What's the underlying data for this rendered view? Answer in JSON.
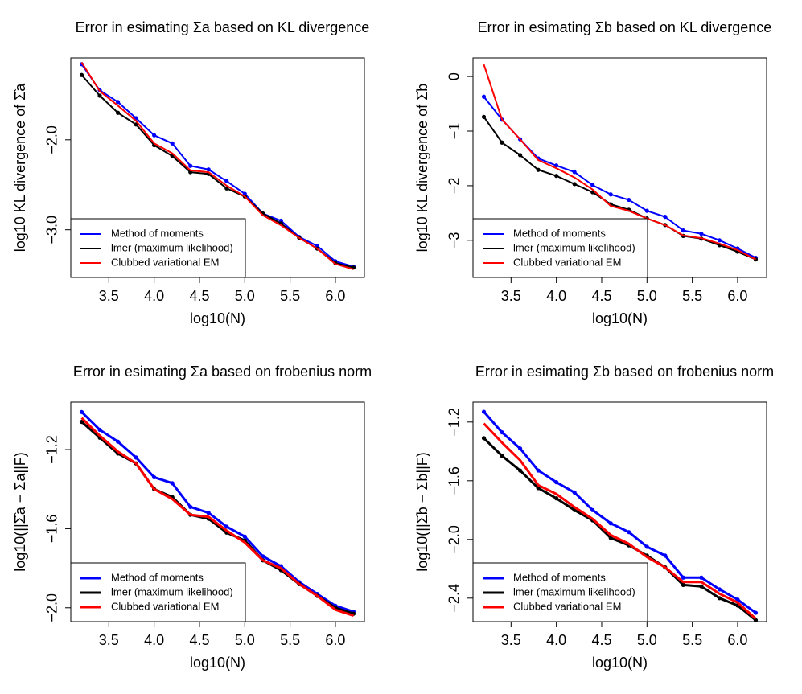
{
  "chart_data": [
    {
      "type": "line",
      "title": "Error in esimating Σa based on KL divergence",
      "xlabel": "log10(N)",
      "ylabel": "log10 KL divergence of Σ̂a",
      "x": [
        3.2,
        3.4,
        3.6,
        3.8,
        4.0,
        4.2,
        4.4,
        4.6,
        4.8,
        5.0,
        5.2,
        5.4,
        5.6,
        5.8,
        6.0,
        6.2
      ],
      "xlim": [
        3.08,
        6.32
      ],
      "xticks": [
        3.5,
        {
          "value": 4,
          "label": "4.0"
        },
        4.5,
        {
          "value": 5,
          "label": "5.0"
        },
        5.5,
        {
          "value": 6,
          "label": "6.0"
        }
      ],
      "ylim": [
        -3.53,
        -1.09
      ],
      "yticks": [
        {
          "value": -2,
          "label": "−2.0"
        },
        {
          "value": -3,
          "label": "−3.0"
        }
      ],
      "legend": "bottomleft",
      "line_width": 2,
      "series": [
        {
          "name": "Method of moments",
          "color": "#0000ff",
          "marker": true,
          "values": [
            -1.16,
            -1.45,
            -1.58,
            -1.76,
            -1.95,
            -2.04,
            -2.29,
            -2.33,
            -2.46,
            -2.6,
            -2.82,
            -2.9,
            -3.08,
            -3.18,
            -3.35,
            -3.41
          ]
        },
        {
          "name": "lmer (maximum likelihood)",
          "color": "#000000",
          "marker": true,
          "values": [
            -1.28,
            -1.51,
            -1.7,
            -1.83,
            -2.06,
            -2.18,
            -2.36,
            -2.38,
            -2.54,
            -2.63,
            -2.82,
            -2.93,
            -3.09,
            -3.21,
            -3.37,
            -3.42
          ]
        },
        {
          "name": "Clubbed variational EM",
          "color": "#ff0000",
          "marker": false,
          "values": [
            -1.14,
            -1.46,
            -1.62,
            -1.79,
            -2.04,
            -2.15,
            -2.34,
            -2.36,
            -2.51,
            -2.63,
            -2.84,
            -2.95,
            -3.09,
            -3.21,
            -3.38,
            -3.44
          ]
        }
      ]
    },
    {
      "type": "line",
      "title": "Error in esimating Σb based on KL divergence",
      "xlabel": "log10(N)",
      "ylabel": "log10 KL divergence of Σ̂b",
      "x": [
        3.2,
        3.4,
        3.6,
        3.8,
        4.0,
        4.2,
        4.4,
        4.6,
        4.8,
        5.0,
        5.2,
        5.4,
        5.6,
        5.8,
        6.0,
        6.2
      ],
      "xlim": [
        3.08,
        6.32
      ],
      "xticks": [
        3.5,
        {
          "value": 4,
          "label": "4.0"
        },
        4.5,
        {
          "value": 5,
          "label": "5.0"
        },
        5.5,
        {
          "value": 6,
          "label": "6.0"
        }
      ],
      "ylim": [
        -3.68,
        0.34
      ],
      "yticks": [
        0,
        {
          "value": -1,
          "label": "−1"
        },
        {
          "value": -2,
          "label": "−2"
        },
        {
          "value": -3,
          "label": "−3"
        }
      ],
      "legend": "bottomleft",
      "line_width": 2,
      "series": [
        {
          "name": "Method of moments",
          "color": "#0000ff",
          "marker": true,
          "values": [
            -0.37,
            -0.79,
            -1.15,
            -1.5,
            -1.63,
            -1.75,
            -1.99,
            -2.16,
            -2.26,
            -2.46,
            -2.57,
            -2.82,
            -2.88,
            -3.0,
            -3.15,
            -3.32
          ]
        },
        {
          "name": "lmer (maximum likelihood)",
          "color": "#000000",
          "marker": true,
          "values": [
            -0.74,
            -1.21,
            -1.44,
            -1.71,
            -1.82,
            -1.97,
            -2.12,
            -2.34,
            -2.44,
            -2.6,
            -2.72,
            -2.92,
            -2.97,
            -3.09,
            -3.21,
            -3.35
          ]
        },
        {
          "name": "Clubbed variational EM",
          "color": "#ff0000",
          "marker": false,
          "values": [
            0.22,
            -0.79,
            -1.15,
            -1.53,
            -1.68,
            -1.85,
            -2.07,
            -2.37,
            -2.46,
            -2.6,
            -2.72,
            -2.91,
            -2.96,
            -3.06,
            -3.18,
            -3.35
          ]
        }
      ]
    },
    {
      "type": "line",
      "title": "Error in esimating Σa based on frobenius norm",
      "xlabel": "log10(N)",
      "ylabel": "log10(||Σ̂a − Σa||F)",
      "x": [
        3.2,
        3.4,
        3.6,
        3.8,
        4.0,
        4.2,
        4.4,
        4.6,
        4.8,
        5.0,
        5.2,
        5.4,
        5.6,
        5.8,
        6.0,
        6.2
      ],
      "xlim": [
        3.08,
        6.32
      ],
      "xticks": [
        3.5,
        {
          "value": 4,
          "label": "4.0"
        },
        4.5,
        {
          "value": 5,
          "label": "5.0"
        },
        5.5,
        {
          "value": 6,
          "label": "6.0"
        }
      ],
      "ylim": [
        -2.07,
        -0.96
      ],
      "yticks": [
        {
          "value": -1.2,
          "label": "−1.2"
        },
        {
          "value": -1.6,
          "label": "−1.6"
        },
        {
          "value": -2,
          "label": "−2.0"
        }
      ],
      "legend": "bottomleft",
      "line_width": 3,
      "series": [
        {
          "name": "Method of moments",
          "color": "#0000ff",
          "marker": true,
          "values": [
            -1.01,
            -1.1,
            -1.16,
            -1.24,
            -1.34,
            -1.37,
            -1.49,
            -1.52,
            -1.59,
            -1.64,
            -1.74,
            -1.79,
            -1.87,
            -1.93,
            -1.99,
            -2.02
          ]
        },
        {
          "name": "lmer (maximum likelihood)",
          "color": "#000000",
          "marker": true,
          "values": [
            -1.06,
            -1.14,
            -1.22,
            -1.27,
            -1.4,
            -1.44,
            -1.53,
            -1.55,
            -1.62,
            -1.66,
            -1.76,
            -1.81,
            -1.88,
            -1.94,
            -2.0,
            -2.03
          ]
        },
        {
          "name": "Clubbed variational EM",
          "color": "#ff0000",
          "marker": false,
          "values": [
            -1.04,
            -1.13,
            -1.21,
            -1.27,
            -1.4,
            -1.45,
            -1.53,
            -1.54,
            -1.61,
            -1.67,
            -1.76,
            -1.8,
            -1.88,
            -1.94,
            -2.01,
            -2.04
          ]
        }
      ]
    },
    {
      "type": "line",
      "title": "Error in esimating Σb based on frobenius norm",
      "xlabel": "log10(N)",
      "ylabel": "log10(||Σ̂b − Σb||F)",
      "x": [
        3.2,
        3.4,
        3.6,
        3.8,
        4.0,
        4.2,
        4.4,
        4.6,
        4.8,
        5.0,
        5.2,
        5.4,
        5.6,
        5.8,
        6.0,
        6.2
      ],
      "xlim": [
        3.08,
        6.32
      ],
      "xticks": [
        3.5,
        {
          "value": 4,
          "label": "4.0"
        },
        4.5,
        {
          "value": 5,
          "label": "5.0"
        },
        5.5,
        {
          "value": 6,
          "label": "6.0"
        }
      ],
      "ylim": [
        -2.56,
        -1.064
      ],
      "yticks": [
        {
          "value": -1.2,
          "label": "−1.2"
        },
        {
          "value": -1.6,
          "label": "−1.6"
        },
        {
          "value": -2,
          "label": "−2.0"
        },
        {
          "value": -2.4,
          "label": "−2.4"
        }
      ],
      "legend": "bottomleft",
      "line_width": 3,
      "series": [
        {
          "name": "Method of moments",
          "color": "#0000ff",
          "marker": true,
          "values": [
            -1.13,
            -1.27,
            -1.38,
            -1.53,
            -1.61,
            -1.68,
            -1.8,
            -1.89,
            -1.95,
            -2.05,
            -2.11,
            -2.26,
            -2.26,
            -2.34,
            -2.41,
            -2.5
          ]
        },
        {
          "name": "lmer (maximum likelihood)",
          "color": "#000000",
          "marker": true,
          "values": [
            -1.31,
            -1.43,
            -1.53,
            -1.65,
            -1.72,
            -1.8,
            -1.87,
            -1.99,
            -2.04,
            -2.11,
            -2.19,
            -2.31,
            -2.32,
            -2.4,
            -2.45,
            -2.55
          ]
        },
        {
          "name": "Clubbed variational EM",
          "color": "#ff0000",
          "marker": false,
          "values": [
            -1.21,
            -1.34,
            -1.46,
            -1.63,
            -1.69,
            -1.78,
            -1.86,
            -1.97,
            -2.03,
            -2.12,
            -2.19,
            -2.29,
            -2.29,
            -2.37,
            -2.43,
            -2.54
          ]
        }
      ]
    }
  ]
}
